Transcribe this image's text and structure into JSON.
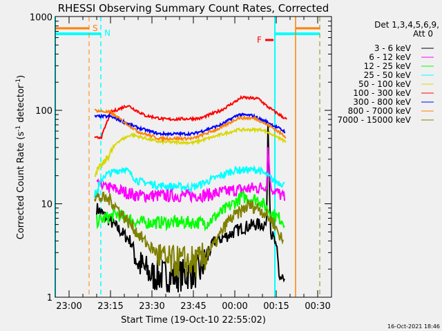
{
  "chart_data": {
    "type": "line",
    "title": "RHESSI Observing Summary Count Rates, Corrected",
    "xlabel": "Start Time (19-Oct-10 22:55:02)",
    "ylabel": "Corrected Count Rate (s⁻¹ detector⁻¹)",
    "ylabel_parts": {
      "a": "Corrected Count Rate (s",
      "sup1": "-1",
      "b": " detector",
      "sup2": "-1",
      "c": ")"
    },
    "yscale": "log",
    "ylim": [
      1,
      1000
    ],
    "x_units": "minutes after 23:00",
    "xlim": [
      -5,
      95
    ],
    "y_ticks": [
      {
        "value": 1,
        "label": "1"
      },
      {
        "value": 10,
        "label": "10"
      },
      {
        "value": 100,
        "label": "100"
      },
      {
        "value": 1000,
        "label": "1000"
      }
    ],
    "x_ticks": [
      {
        "value": 0,
        "label": "23:00"
      },
      {
        "value": 15,
        "label": "23:15"
      },
      {
        "value": 30,
        "label": "23:30"
      },
      {
        "value": 45,
        "label": "23:45"
      },
      {
        "value": 60,
        "label": "00:00"
      },
      {
        "value": 75,
        "label": "00:15"
      },
      {
        "value": 90,
        "label": "00:30"
      }
    ],
    "legend_header": [
      "Det 1,3,4,5,6,9,",
      "Att 0"
    ],
    "legend_position": "right",
    "series": [
      {
        "name": "3 - 6 keV",
        "color": "#000000",
        "points": [
          [
            10,
            9
          ],
          [
            17.5,
            5.5
          ],
          [
            22.5,
            3.9
          ],
          [
            25,
            2.3
          ],
          [
            30,
            1.7
          ],
          [
            40,
            1.7
          ],
          [
            47.5,
            1.9
          ],
          [
            52.5,
            3.9
          ],
          [
            57.5,
            4.6
          ],
          [
            62.5,
            5.5
          ],
          [
            67.5,
            6
          ],
          [
            71.5,
            6
          ],
          [
            72,
            70
          ],
          [
            73,
            5
          ],
          [
            74.5,
            3.9
          ],
          [
            76.25,
            1.7
          ],
          [
            78,
            1.3
          ]
        ]
      },
      {
        "name": "6 - 12 keV",
        "color": "#ff00ff",
        "points": [
          [
            10,
            16.6
          ],
          [
            15,
            14.7
          ],
          [
            25,
            12.2
          ],
          [
            40,
            12.2
          ],
          [
            50,
            12.4
          ],
          [
            60,
            14
          ],
          [
            70,
            15
          ],
          [
            71.5,
            15
          ],
          [
            72,
            40
          ],
          [
            73,
            15
          ],
          [
            78,
            11.5
          ]
        ]
      },
      {
        "name": "12 - 25 keV",
        "color": "#00ff00",
        "points": [
          [
            10,
            6.5
          ],
          [
            17.5,
            7.7
          ],
          [
            25,
            6.3
          ],
          [
            50,
            6.3
          ],
          [
            57.5,
            9.1
          ],
          [
            62.5,
            11.8
          ],
          [
            68.75,
            11
          ],
          [
            73.75,
            7.7
          ],
          [
            78,
            6.5
          ]
        ]
      },
      {
        "name": "25 - 50 keV",
        "color": "#00ffff",
        "points": [
          [
            9.25,
            11.6
          ],
          [
            12.5,
            20
          ],
          [
            20,
            24
          ],
          [
            25,
            17.5
          ],
          [
            32.5,
            15.7
          ],
          [
            45,
            15
          ],
          [
            55,
            20
          ],
          [
            60,
            23
          ],
          [
            68.75,
            23
          ],
          [
            73.75,
            18
          ],
          [
            78,
            16
          ]
        ]
      },
      {
        "name": "50 - 100 keV",
        "color": "#d8d800",
        "points": [
          [
            9.25,
            21
          ],
          [
            12.5,
            27
          ],
          [
            17.5,
            46
          ],
          [
            22.5,
            55
          ],
          [
            32.5,
            46
          ],
          [
            45,
            45
          ],
          [
            55,
            55
          ],
          [
            61.25,
            62
          ],
          [
            70,
            62
          ],
          [
            73.75,
            55
          ],
          [
            78.5,
            46
          ]
        ]
      },
      {
        "name": "100 - 300 keV",
        "color": "#ff0000",
        "points": [
          [
            9.25,
            50
          ],
          [
            11.75,
            52
          ],
          [
            15,
            95
          ],
          [
            21.25,
            113
          ],
          [
            27.5,
            88
          ],
          [
            35,
            80
          ],
          [
            47.5,
            82
          ],
          [
            55,
            100
          ],
          [
            62.5,
            137
          ],
          [
            68.75,
            133
          ],
          [
            71.25,
            113
          ],
          [
            73.75,
            100
          ],
          [
            78.75,
            80
          ]
        ]
      },
      {
        "name": "300 - 800 keV",
        "color": "#0000ff",
        "points": [
          [
            9.25,
            86
          ],
          [
            15,
            86
          ],
          [
            25,
            65
          ],
          [
            32.5,
            56
          ],
          [
            45,
            56
          ],
          [
            55,
            70
          ],
          [
            61.25,
            90
          ],
          [
            66.25,
            88
          ],
          [
            72.5,
            73
          ],
          [
            78.25,
            59
          ]
        ]
      },
      {
        "name": "800 - 7000 keV",
        "color": "#ff8000",
        "points": [
          [
            9.25,
            100
          ],
          [
            15,
            95
          ],
          [
            25,
            59
          ],
          [
            32.5,
            50
          ],
          [
            45,
            50
          ],
          [
            55,
            65
          ],
          [
            61.25,
            83
          ],
          [
            67.5,
            82
          ],
          [
            73.75,
            65
          ],
          [
            78.5,
            52
          ]
        ]
      },
      {
        "name": "7000 - 15000 keV",
        "color": "#808000",
        "points": [
          [
            9.25,
            11.8
          ],
          [
            15,
            11
          ],
          [
            21.25,
            6.5
          ],
          [
            27.5,
            3.9
          ],
          [
            35,
            2.4
          ],
          [
            47.5,
            2.4
          ],
          [
            52.5,
            3.6
          ],
          [
            57.5,
            6.5
          ],
          [
            65,
            9.6
          ],
          [
            68.75,
            9
          ],
          [
            73.75,
            6.5
          ],
          [
            77.5,
            3.9
          ]
        ]
      }
    ],
    "annotations": {
      "saa_label": "S",
      "night_label": "N",
      "flare_label": "F",
      "saa_color": "#ff8000",
      "night_color": "#00ffff",
      "flare_color": "#ff0000",
      "saa_intervals": [
        [
          -5,
          7.25
        ],
        [
          82,
          90.75
        ]
      ],
      "night_intervals": [
        [
          -5,
          11.5
        ],
        [
          74.5,
          90.75
        ]
      ],
      "flare_interval": [
        71,
        74
      ]
    }
  },
  "footer": {
    "timestamp": "16-Oct-2021 18:46"
  }
}
